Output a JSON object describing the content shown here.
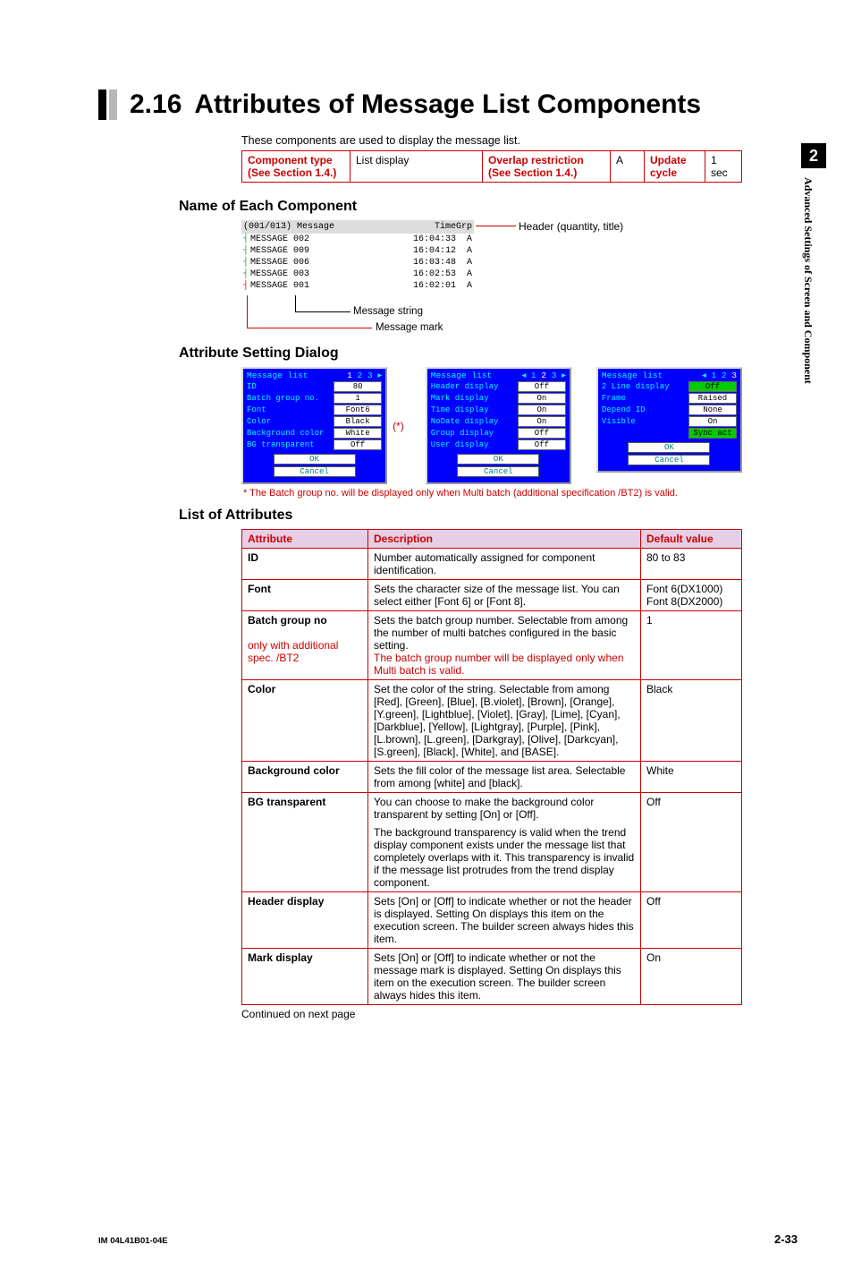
{
  "side_tab": {
    "number": "2",
    "text": "Advanced Settings of Screen and Component"
  },
  "section": {
    "number": "2.16",
    "title": "Attributes of Message List Components"
  },
  "intro": "These components are used to display the message list.",
  "comp_info": {
    "h1": "Component type",
    "h1_note": "(See Section 1.4.)",
    "v1": "List display",
    "h2": "Overlap restriction",
    "h2_note": "(See Section 1.4.)",
    "v2": "A",
    "h3": "Update cycle",
    "v3": "1 sec"
  },
  "sub": {
    "name": "Name of Each Component",
    "dialog": "Attribute Setting Dialog",
    "list": "List of Attributes"
  },
  "msglist": {
    "hdr_left": "(001/013) Message",
    "hdr_time": "Time",
    "hdr_grp": "Grp",
    "rows": [
      {
        "mark": "g",
        "msg": "MESSAGE 002",
        "time": "16:04:33",
        "grp": "A"
      },
      {
        "mark": "g",
        "msg": "MESSAGE 009",
        "time": "16:04:12",
        "grp": "A"
      },
      {
        "mark": "g",
        "msg": "MESSAGE 006",
        "time": "16:03:48",
        "grp": "A"
      },
      {
        "mark": "g",
        "msg": "MESSAGE 003",
        "time": "16:02:53",
        "grp": "A"
      },
      {
        "mark": "r",
        "msg": "MESSAGE 001",
        "time": "16:02:01",
        "grp": "A"
      }
    ],
    "callout_header": "Header (quantity, title)",
    "callout_string": "Message string",
    "callout_mark": "Message mark"
  },
  "dialogs": {
    "title": "Message list",
    "nav1": "1 2 3 ▸",
    "nav2": "◂ 1 2 3 ▸",
    "nav3": "◂ 1 2 3",
    "d1": [
      {
        "l": "ID",
        "v": "80"
      },
      {
        "l": "Batch group no.",
        "v": "1"
      },
      {
        "l": "Font",
        "v": "Font6"
      },
      {
        "l": "Color",
        "v": "Black"
      },
      {
        "l": "Background color",
        "v": "White"
      },
      {
        "l": "BG transparent",
        "v": "Off"
      }
    ],
    "d2": [
      {
        "l": "Header display",
        "v": "Off"
      },
      {
        "l": "Mark display",
        "v": "On"
      },
      {
        "l": "Time display",
        "v": "On"
      },
      {
        "l": "NoDate display",
        "v": "On"
      },
      {
        "l": "Group display",
        "v": "Off"
      },
      {
        "l": "User display",
        "v": "Off"
      }
    ],
    "d3": [
      {
        "l": "2 Line display",
        "v": "Off",
        "g": true
      },
      {
        "l": "Frame",
        "v": "Raised"
      },
      {
        "l": "Depend ID",
        "v": "None"
      },
      {
        "l": "Visible",
        "v": "On"
      },
      {
        "l": "",
        "v": "Sync act",
        "g": true
      }
    ],
    "ok": "OK",
    "cancel": "Cancel",
    "star": "(*)",
    "star_note": "* The Batch group no. will be displayed only when Multi  batch (additional specification /BT2) is valid."
  },
  "attr": {
    "h1": "Attribute",
    "h2": "Description",
    "h3": "Default value",
    "rows": [
      {
        "a": "ID",
        "d": "Number automatically assigned for component identification.",
        "v": "80 to 83"
      },
      {
        "a": "Font",
        "d": "Sets the character size of the message list. You can select either [Font 6] or [Font 8].",
        "v": "Font 6(DX1000)\nFont 8(DX2000)"
      },
      {
        "a": "Batch group no",
        "a2": "only with additional spec. /BT2",
        "d": "Sets the batch group number. Selectable from among the number of multi batches configured in the basic setting.",
        "d2": "The batch group number will be displayed only when Multi batch is valid.",
        "v": "1"
      },
      {
        "a": "Color",
        "d": "Set the color of the string. Selectable from among [Red], [Green], [Blue], [B.violet], [Brown], [Orange], [Y.green], [Lightblue], [Violet], [Gray], [Lime], [Cyan], [Darkblue], [Yellow], [Lightgray], [Purple], [Pink], [L.brown], [L.green], [Darkgray], [Olive], [Darkcyan], [S.green], [Black], [White], and [BASE].",
        "v": "Black"
      },
      {
        "a": "Background color",
        "d": "Sets the fill color of the message list area.  Selectable from among [white] and [black].",
        "v": "White"
      },
      {
        "a": "BG transparent",
        "d": "You can choose to make the background color transparent by setting [On] or [Off].",
        "d2p": "The background transparency is valid when the trend display component exists under the message list that completely overlaps with it.  This transparency is invalid if the message list protrudes from the trend display component.",
        "v": "Off"
      },
      {
        "a": "Header display",
        "d": "Sets [On] or [Off] to indicate whether or not the header is displayed. Setting On displays this item on the execution screen.  The builder screen always hides this item.",
        "v": "Off"
      },
      {
        "a": "Mark display",
        "d": "Sets [On] or [Off] to indicate whether or not the message mark is displayed.  Setting On displays this item on the execution screen.  The builder screen always hides this item.",
        "v": "On"
      }
    ],
    "cont": "Continued on next page"
  },
  "footer": {
    "left": "IM 04L41B01-04E",
    "right": "2-33"
  }
}
